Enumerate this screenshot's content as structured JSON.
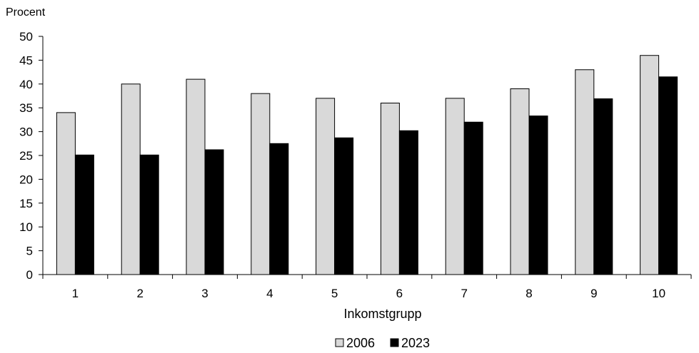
{
  "chart_data": {
    "type": "bar",
    "ylabel": "Procent",
    "xlabel": "Inkomstgrupp",
    "categories": [
      "1",
      "2",
      "3",
      "4",
      "5",
      "6",
      "7",
      "8",
      "9",
      "10"
    ],
    "ylim": [
      0,
      50
    ],
    "yticks": [
      "0",
      "5",
      "10",
      "15",
      "20",
      "25",
      "30",
      "35",
      "40",
      "45",
      "50"
    ],
    "grid": false,
    "legend_position": "bottom",
    "series": [
      {
        "name": "2006",
        "color": "#d9d9d9",
        "values": [
          34,
          40,
          41,
          38,
          37,
          36,
          37,
          39,
          43,
          46
        ]
      },
      {
        "name": "2023",
        "color": "#000000",
        "values": [
          25.1,
          25.1,
          26.2,
          27.5,
          28.7,
          30.2,
          32.0,
          33.3,
          36.9,
          41.5
        ]
      }
    ]
  }
}
